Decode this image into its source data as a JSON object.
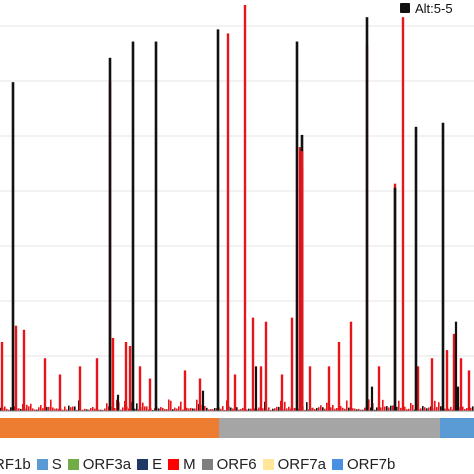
{
  "chart_data": {
    "type": "bar",
    "legend": [
      {
        "name": "Alt:5-5",
        "color": "#111111"
      }
    ],
    "ylim": [
      0,
      100
    ],
    "grid": true,
    "gene_track": [
      {
        "name": "RF1b",
        "color": "#ED7D31",
        "start": 0,
        "end": 219
      },
      {
        "name": "S",
        "color": "#A5A5A5",
        "start": 219,
        "end": 440
      },
      {
        "name": "ORF3a",
        "color": "#5B9BD5",
        "start": 440,
        "end": 474
      }
    ],
    "gene_legend": [
      {
        "name": "RF1b",
        "color": "#ED7D31"
      },
      {
        "name": "S",
        "color": "#5B9BD5"
      },
      {
        "name": "ORF3a",
        "color": "#70AD47"
      },
      {
        "name": "E",
        "color": "#1F3864"
      },
      {
        "name": "M",
        "color": "#FF0000"
      },
      {
        "name": "ORF6",
        "color": "#7F7F7F"
      },
      {
        "name": "ORF7a",
        "color": "#FFE699"
      },
      {
        "name": "ORF7b",
        "color": "#4A90E2"
      }
    ],
    "black_spikes": [
      {
        "x": 13,
        "v": 81
      },
      {
        "x": 110,
        "v": 87
      },
      {
        "x": 133,
        "v": 91
      },
      {
        "x": 156,
        "v": 91
      },
      {
        "x": 218,
        "v": 94
      },
      {
        "x": 297,
        "v": 91
      },
      {
        "x": 302,
        "v": 68
      },
      {
        "x": 367,
        "v": 97
      },
      {
        "x": 395,
        "v": 55
      },
      {
        "x": 416,
        "v": 70
      },
      {
        "x": 443,
        "v": 71
      }
    ],
    "red_bars": [
      {
        "x": 110,
        "v": 81
      },
      {
        "x": 228,
        "v": 93
      },
      {
        "x": 245,
        "v": 100
      },
      {
        "x": 302,
        "v": 60
      },
      {
        "x": 367,
        "v": 90
      },
      {
        "x": 403,
        "v": 97
      },
      {
        "x": 395,
        "v": 56
      },
      {
        "x": 300,
        "v": 65
      },
      {
        "x": 2,
        "v": 17
      },
      {
        "x": 16,
        "v": 21
      },
      {
        "x": 24,
        "v": 20
      },
      {
        "x": 45,
        "v": 13
      },
      {
        "x": 60,
        "v": 9
      },
      {
        "x": 80,
        "v": 11
      },
      {
        "x": 97,
        "v": 13
      },
      {
        "x": 113,
        "v": 18
      },
      {
        "x": 126,
        "v": 17
      },
      {
        "x": 130,
        "v": 16
      },
      {
        "x": 140,
        "v": 11
      },
      {
        "x": 150,
        "v": 8
      },
      {
        "x": 185,
        "v": 10
      },
      {
        "x": 200,
        "v": 8
      },
      {
        "x": 235,
        "v": 9
      },
      {
        "x": 253,
        "v": 23
      },
      {
        "x": 261,
        "v": 11
      },
      {
        "x": 266,
        "v": 22
      },
      {
        "x": 282,
        "v": 9
      },
      {
        "x": 292,
        "v": 23
      },
      {
        "x": 310,
        "v": 11
      },
      {
        "x": 329,
        "v": 11
      },
      {
        "x": 339,
        "v": 17
      },
      {
        "x": 351,
        "v": 22
      },
      {
        "x": 379,
        "v": 11
      },
      {
        "x": 418,
        "v": 11
      },
      {
        "x": 432,
        "v": 13
      },
      {
        "x": 447,
        "v": 15
      },
      {
        "x": 454,
        "v": 19
      },
      {
        "x": 461,
        "v": 13
      },
      {
        "x": 469,
        "v": 10
      }
    ],
    "black_small": [
      {
        "x": 118,
        "v": 4
      },
      {
        "x": 203,
        "v": 5
      },
      {
        "x": 256,
        "v": 11
      },
      {
        "x": 372,
        "v": 6
      },
      {
        "x": 456,
        "v": 22
      },
      {
        "x": 458,
        "v": 6
      }
    ]
  }
}
